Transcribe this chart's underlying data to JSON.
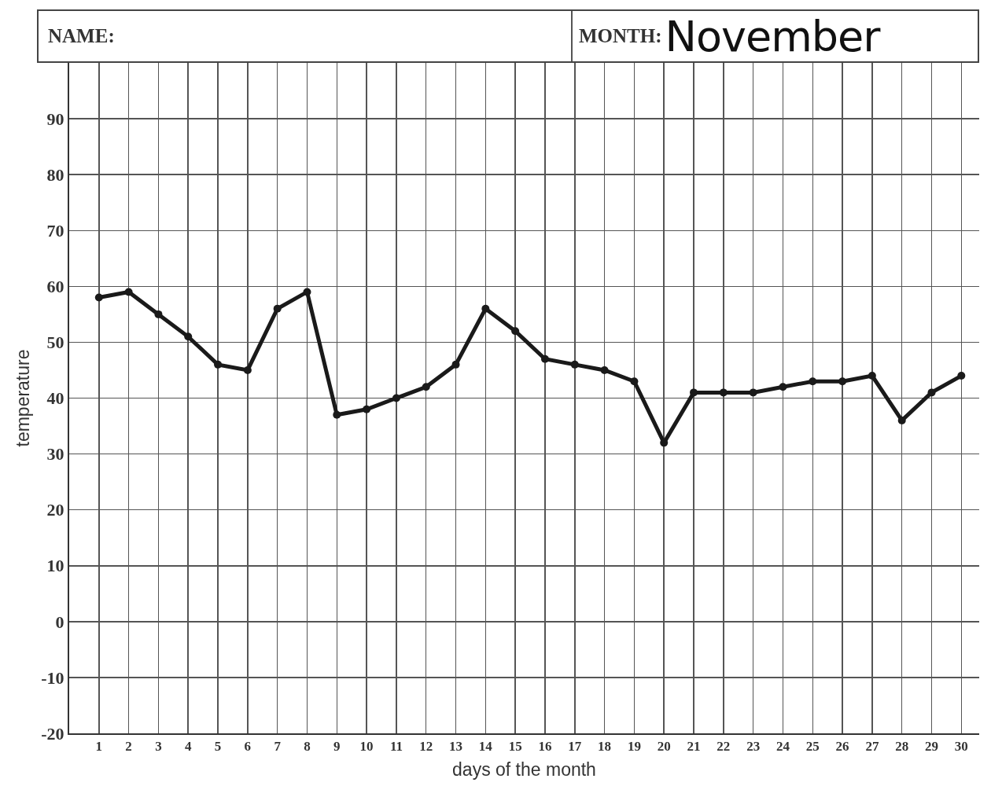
{
  "chart_data": {
    "type": "line",
    "annotations": [
      "NAME:",
      "MONTH:",
      "November"
    ],
    "xlabel": "days of the month",
    "ylabel": "temperature",
    "x": [
      1,
      2,
      3,
      4,
      5,
      6,
      7,
      8,
      9,
      10,
      11,
      12,
      13,
      14,
      15,
      16,
      17,
      18,
      19,
      20,
      21,
      22,
      23,
      24,
      25,
      26,
      27,
      28,
      29,
      30
    ],
    "values": [
      58,
      59,
      55,
      51,
      46,
      45,
      56,
      59,
      37,
      38,
      40,
      42,
      46,
      56,
      52,
      47,
      46,
      45,
      43,
      32,
      41,
      41,
      41,
      42,
      43,
      43,
      44,
      36,
      41,
      44
    ],
    "color": "#1a1a1a",
    "xlim": [
      0,
      30.6
    ],
    "xticks": [
      1,
      2,
      3,
      4,
      5,
      6,
      7,
      8,
      9,
      10,
      11,
      12,
      13,
      14,
      15,
      16,
      17,
      18,
      19,
      20,
      21,
      22,
      23,
      24,
      25,
      26,
      27,
      28,
      29,
      30
    ],
    "ylim": [
      -20,
      100
    ],
    "yticks": [
      -20,
      -10,
      0,
      10,
      20,
      30,
      40,
      50,
      60,
      70,
      80,
      90
    ],
    "grid": true,
    "marker": "circle",
    "line_style": "solid"
  }
}
